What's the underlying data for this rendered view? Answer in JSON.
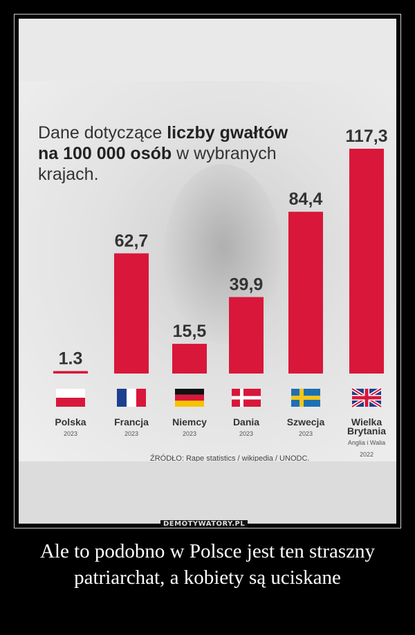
{
  "chart_data": {
    "type": "bar",
    "title_parts": {
      "p1": "Dane dotyczące ",
      "p2": "liczby gwałtów",
      "p3": "na 100 000 osób",
      "p4": " w wybranych krajach."
    },
    "categories": [
      "Polska",
      "Francja",
      "Niemcy",
      "Dania",
      "Szwecja",
      "Wielka Brytania"
    ],
    "years": [
      "2023",
      "2023",
      "2023",
      "2023",
      "2023",
      "2022"
    ],
    "values": [
      1.3,
      62.7,
      15.5,
      39.9,
      84.4,
      117.3
    ],
    "value_labels": [
      "1.3",
      "62,7",
      "15,5",
      "39,9",
      "84,4",
      "117,3"
    ],
    "notes": [
      "",
      "",
      "",
      "",
      "",
      "Anglia i Walia"
    ],
    "ylim": [
      0,
      117.3
    ],
    "bar_color": "#d8173a",
    "source": "ŹRÓDŁO: Rape statistics / wikipedia / UNODC."
  },
  "flags": [
    {
      "icon": "poland-flag-icon",
      "colors": [
        "#ffffff",
        "#d8173a"
      ]
    },
    {
      "icon": "france-flag-icon",
      "colors": [
        "#1d3f8f",
        "#ffffff",
        "#d8173a"
      ]
    },
    {
      "icon": "germany-flag-icon",
      "colors": [
        "#111111",
        "#d8173a",
        "#f5c400"
      ]
    },
    {
      "icon": "denmark-flag-icon",
      "colors": [
        "#d8173a",
        "#ffffff"
      ]
    },
    {
      "icon": "sweden-flag-icon",
      "colors": [
        "#1f6fb3",
        "#f3c61b"
      ]
    },
    {
      "icon": "uk-flag-icon",
      "colors": [
        "#1f3f8a",
        "#ffffff",
        "#d8173a"
      ]
    }
  ],
  "watermark": "DEMOTYWATORY.PL",
  "caption": "Ale to podobno w Polsce jest ten straszny patriarchat, a kobiety są uciskane"
}
